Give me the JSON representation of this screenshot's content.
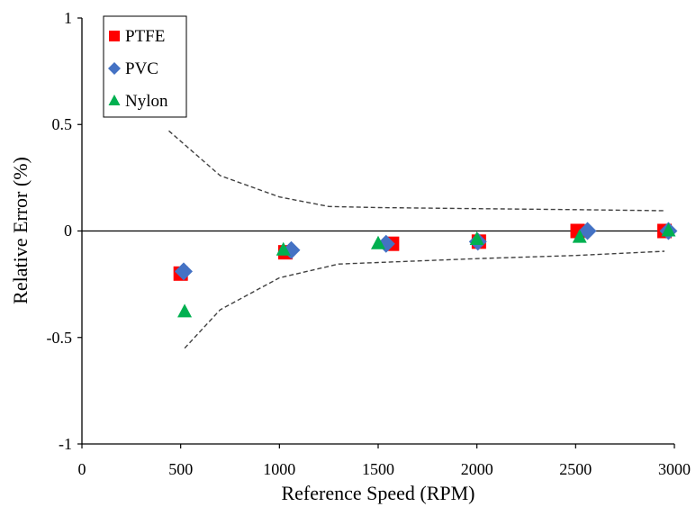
{
  "chart_data": {
    "type": "scatter",
    "xlabel": "Reference Speed (RPM)",
    "ylabel": "Relative Error (%)",
    "xlim": [
      0,
      3000
    ],
    "ylim": [
      -1,
      1
    ],
    "x_ticks": [
      "0",
      "500",
      "1000",
      "1500",
      "2000",
      "2500",
      "3000"
    ],
    "y_ticks": [
      "1",
      "0.5",
      "0",
      "-0.5",
      "-1"
    ],
    "grid": false,
    "legend_position": "top-left",
    "series": [
      {
        "name": "PTFE",
        "marker": "square",
        "color": "#FF0000",
        "points": [
          [
            500,
            -0.2
          ],
          [
            1030,
            -0.1
          ],
          [
            1570,
            -0.06
          ],
          [
            2010,
            -0.05
          ],
          [
            2510,
            0.0
          ],
          [
            2950,
            0.0
          ]
        ]
      },
      {
        "name": "PVC",
        "marker": "diamond",
        "color": "#4472C4",
        "points": [
          [
            515,
            -0.19
          ],
          [
            1060,
            -0.09
          ],
          [
            1540,
            -0.06
          ],
          [
            2005,
            -0.05
          ],
          [
            2560,
            0.0
          ],
          [
            2970,
            0.0
          ]
        ]
      },
      {
        "name": "Nylon",
        "marker": "triangle",
        "color": "#00B050",
        "points": [
          [
            520,
            -0.38
          ],
          [
            1020,
            -0.09
          ],
          [
            1500,
            -0.06
          ],
          [
            2000,
            -0.04
          ],
          [
            2520,
            -0.03
          ],
          [
            2970,
            0.0
          ]
        ]
      }
    ],
    "envelope": {
      "style": "dashed",
      "color": "#404040",
      "upper": [
        [
          440,
          0.47
        ],
        [
          700,
          0.26
        ],
        [
          1000,
          0.16
        ],
        [
          1250,
          0.115
        ],
        [
          1500,
          0.11
        ],
        [
          2000,
          0.105
        ],
        [
          2500,
          0.1
        ],
        [
          2950,
          0.095
        ]
      ],
      "lower": [
        [
          520,
          -0.55
        ],
        [
          700,
          -0.37
        ],
        [
          1000,
          -0.22
        ],
        [
          1300,
          -0.155
        ],
        [
          1500,
          -0.148
        ],
        [
          2000,
          -0.13
        ],
        [
          2500,
          -0.115
        ],
        [
          2950,
          -0.095
        ]
      ]
    }
  }
}
